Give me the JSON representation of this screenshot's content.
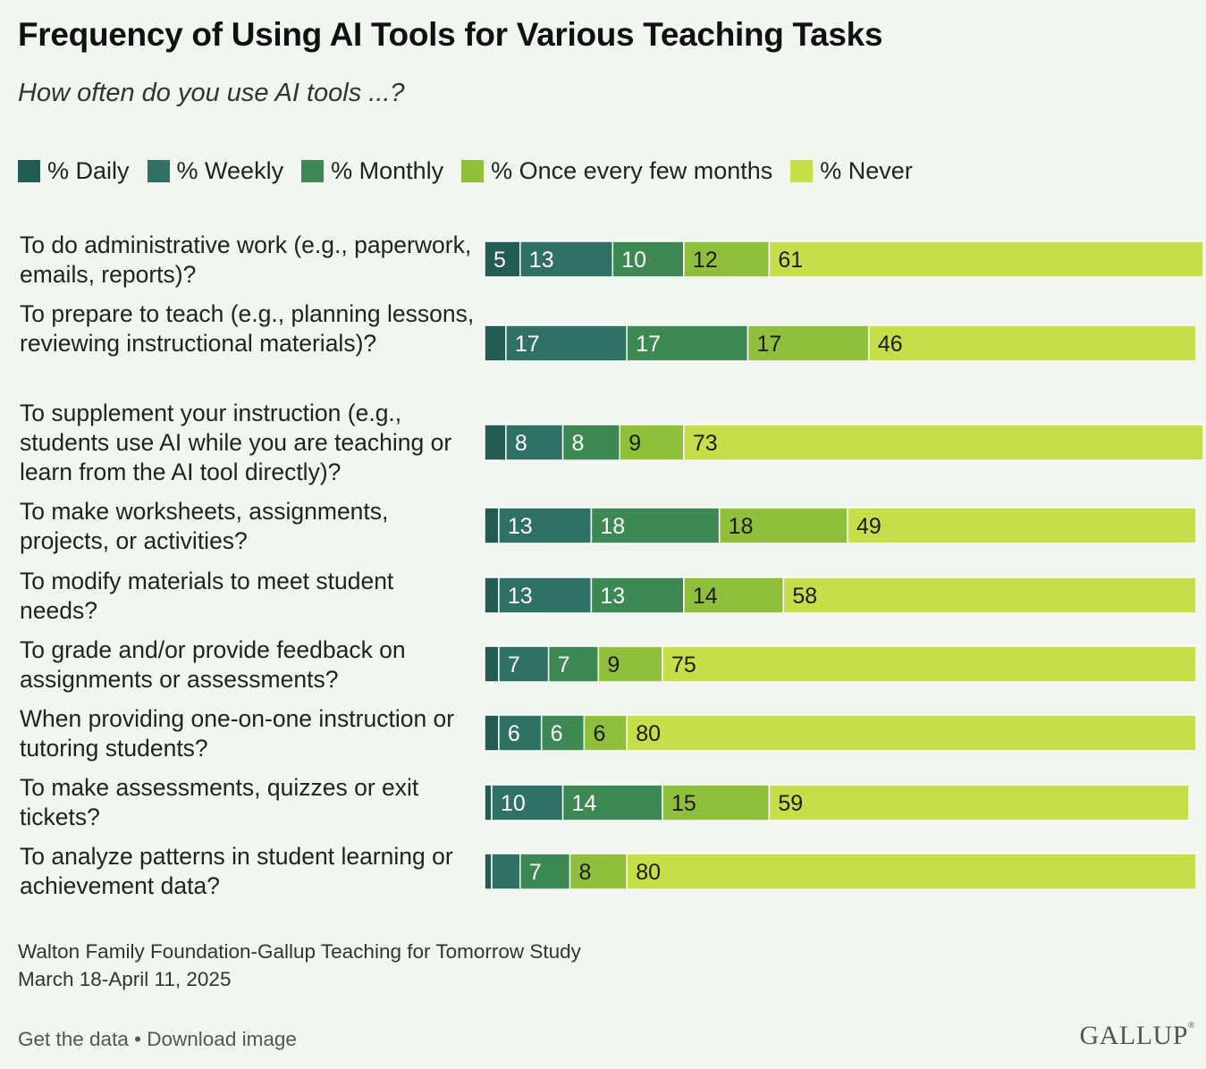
{
  "title": "Frequency of Using AI Tools for Various Teaching Tasks",
  "subtitle": "How often do you use AI tools ...?",
  "colors": {
    "daily": "#235c52",
    "weekly": "#2f7165",
    "monthly": "#3d8853",
    "few_months": "#8fbf3b",
    "never": "#c6de4a",
    "background": "#f1f6f1"
  },
  "chart_data": {
    "type": "bar",
    "orientation": "horizontal-stacked",
    "title": "Frequency of Using AI Tools for Various Teaching Tasks",
    "subtitle": "How often do you use AI tools ...?",
    "legend": [
      "% Daily",
      "% Weekly",
      "% Monthly",
      "% Once every few months",
      "% Never"
    ],
    "legend_position": "top",
    "xlim": [
      0,
      100
    ],
    "categories": [
      "To do administrative work (e.g., paperwork, emails, reports)?",
      "To prepare to teach (e.g., planning lessons, reviewing instructional materials)?",
      "To supplement your instruction (e.g., students use AI while you are teaching or learn from the AI tool directly)?",
      "To make worksheets, assignments, projects, or activities?",
      "To modify materials to meet student needs?",
      "To grade and/or provide feedback on assignments or assessments?",
      "When providing one-on-one instruction or tutoring students?",
      "To make assessments, quizzes or exit tickets?",
      "To analyze patterns in student learning or achievement data?"
    ],
    "series": [
      {
        "name": "% Daily",
        "values": [
          5,
          3,
          3,
          2,
          2,
          2,
          2,
          1,
          1
        ],
        "labels": [
          "5",
          "",
          "",
          "",
          "",
          "",
          "",
          "",
          ""
        ]
      },
      {
        "name": "% Weekly",
        "values": [
          13,
          17,
          8,
          13,
          13,
          7,
          6,
          10,
          4
        ],
        "labels": [
          "13",
          "17",
          "8",
          "13",
          "13",
          "7",
          "6",
          "10",
          ""
        ]
      },
      {
        "name": "% Monthly",
        "values": [
          10,
          17,
          8,
          18,
          13,
          7,
          6,
          14,
          7
        ],
        "labels": [
          "10",
          "17",
          "8",
          "18",
          "13",
          "7",
          "6",
          "14",
          "7"
        ]
      },
      {
        "name": "% Once every few months",
        "values": [
          12,
          17,
          9,
          18,
          14,
          9,
          6,
          15,
          8
        ],
        "labels": [
          "12",
          "17",
          "9",
          "18",
          "14",
          "9",
          "6",
          "15",
          "8"
        ]
      },
      {
        "name": "% Never",
        "values": [
          61,
          46,
          73,
          49,
          58,
          75,
          80,
          59,
          80
        ],
        "labels": [
          "61",
          "46",
          "73",
          "49",
          "58",
          "75",
          "80",
          "59",
          "80"
        ]
      }
    ]
  },
  "source": {
    "line1": "Walton Family Foundation-Gallup Teaching for Tomorrow Study",
    "line2": "March 18-April 11, 2025"
  },
  "footer": {
    "get_data": "Get the data",
    "separator": "•",
    "download": "Download image"
  },
  "logo": {
    "text": "GALLUP",
    "mark": "®"
  }
}
